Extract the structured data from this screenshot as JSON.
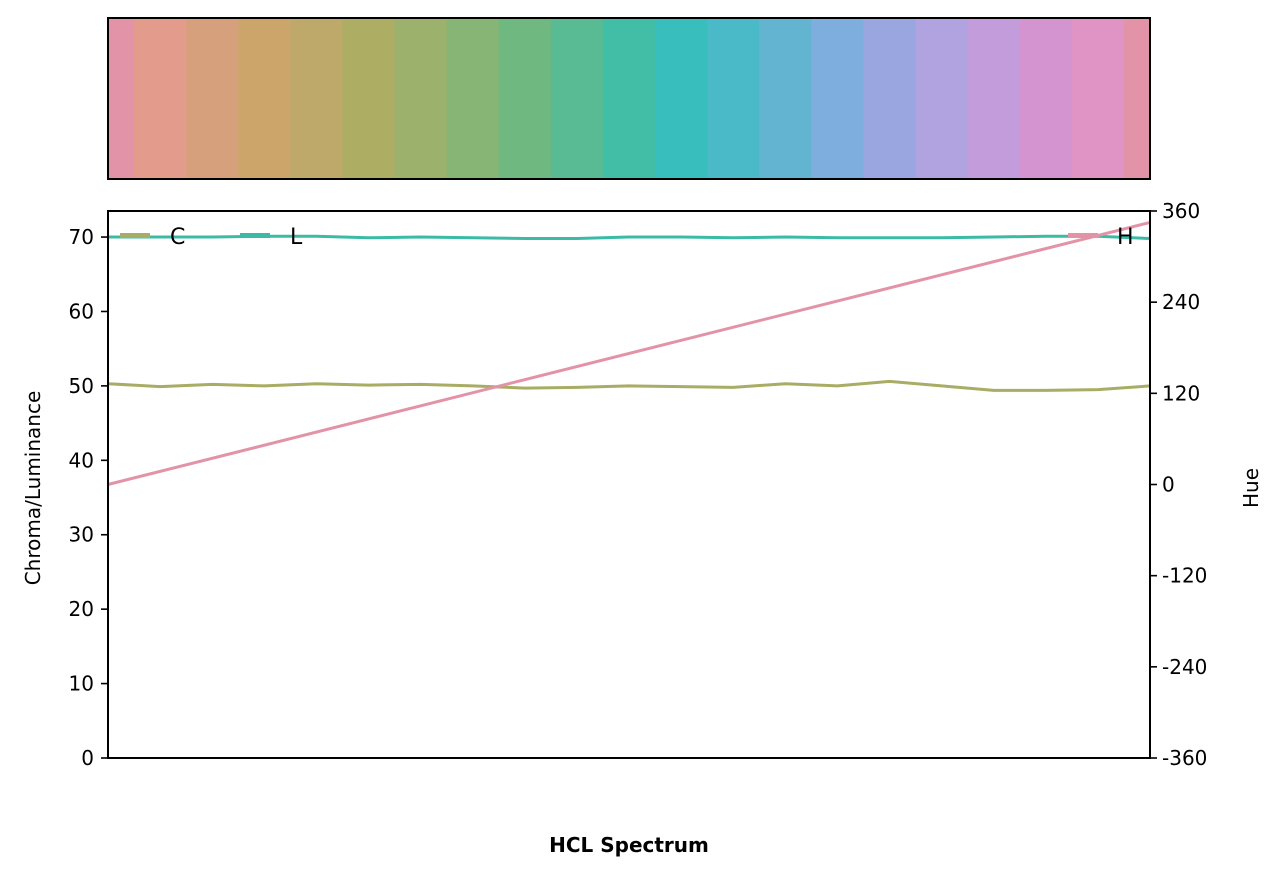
{
  "chart_data": {
    "type": "line",
    "xlabel": "HCL Spectrum",
    "ylabel_left": "Chroma/Luminance",
    "ylabel_right": "Hue",
    "ylim_left": [
      0,
      73.5
    ],
    "ylim_right": [
      -360,
      360
    ],
    "yticks_left": [
      "0",
      "10",
      "20",
      "30",
      "40",
      "50",
      "60",
      "70"
    ],
    "yticks_right": [
      "-360",
      "-240",
      "-120",
      "0",
      "120",
      "240",
      "360"
    ],
    "x_range": [
      0,
      360
    ],
    "grid": false,
    "legend_left": "top-left",
    "legend_right": "top-right",
    "series": [
      {
        "name": "C",
        "axis": "left",
        "color": "#a8ac64",
        "x": [
          0,
          18,
          36,
          54,
          72,
          90,
          108,
          126,
          144,
          162,
          180,
          198,
          216,
          234,
          252,
          270,
          288,
          306,
          324,
          342,
          360
        ],
        "values": [
          50.3,
          49.9,
          50.2,
          50.0,
          50.3,
          50.1,
          50.2,
          50.0,
          49.7,
          49.8,
          50.0,
          49.9,
          49.8,
          50.3,
          50.0,
          50.6,
          50.0,
          49.4,
          49.4,
          49.5,
          50.0
        ]
      },
      {
        "name": "L",
        "axis": "left",
        "color": "#3bbba6",
        "x": [
          0,
          18,
          36,
          54,
          72,
          90,
          108,
          126,
          144,
          162,
          180,
          198,
          216,
          234,
          252,
          270,
          288,
          306,
          324,
          342,
          360
        ],
        "values": [
          70.0,
          70.0,
          70.0,
          70.1,
          70.1,
          69.9,
          70.0,
          69.9,
          69.8,
          69.8,
          70.0,
          70.0,
          69.9,
          70.0,
          69.9,
          69.9,
          69.9,
          70.0,
          70.1,
          70.1,
          69.8
        ]
      },
      {
        "name": "H",
        "axis": "right",
        "color": "#e393a7",
        "x": [
          0,
          360
        ],
        "values": [
          0,
          345
        ]
      }
    ],
    "swatches": [
      "#e393a7",
      "#e39b8c",
      "#d7a07c",
      "#cca56b",
      "#bea96a",
      "#adad64",
      "#9cb16b",
      "#87b575",
      "#6fb880",
      "#58bb94",
      "#42bea6",
      "#38bebd",
      "#4bbac8",
      "#62b4d0",
      "#7eaede",
      "#9aa6e0",
      "#b0a3e0",
      "#c39ddb",
      "#d394cf",
      "#e093c5",
      "#e393a7"
    ]
  }
}
